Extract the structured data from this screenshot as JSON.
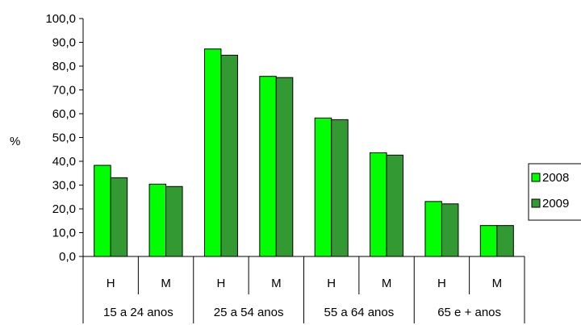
{
  "chart_data": {
    "type": "bar",
    "ylabel": "%",
    "ylim": [
      0,
      100
    ],
    "ytick_step": 10,
    "ytick_labels": [
      "0,0",
      "10,0",
      "20,0",
      "30,0",
      "40,0",
      "50,0",
      "60,0",
      "70,0",
      "80,0",
      "90,0",
      "100,0"
    ],
    "grid": false,
    "legend_position": "right",
    "categories": [
      "H",
      "M",
      "H",
      "M",
      "H",
      "M",
      "H",
      "M"
    ],
    "groups": [
      {
        "label": "15 a 24 anos",
        "span": 2
      },
      {
        "label": "25 a 54 anos",
        "span": 2
      },
      {
        "label": "55 a 64 anos",
        "span": 2
      },
      {
        "label": "65 e + anos",
        "span": 2
      }
    ],
    "series": [
      {
        "name": "2008",
        "color": "#00ff00",
        "values": [
          38.3,
          30.4,
          87.2,
          75.7,
          58.2,
          43.6,
          23.1,
          13.0
        ]
      },
      {
        "name": "2009",
        "color": "#339933",
        "values": [
          33.1,
          29.4,
          84.6,
          75.2,
          57.5,
          42.6,
          22.1,
          13.0
        ]
      }
    ]
  }
}
